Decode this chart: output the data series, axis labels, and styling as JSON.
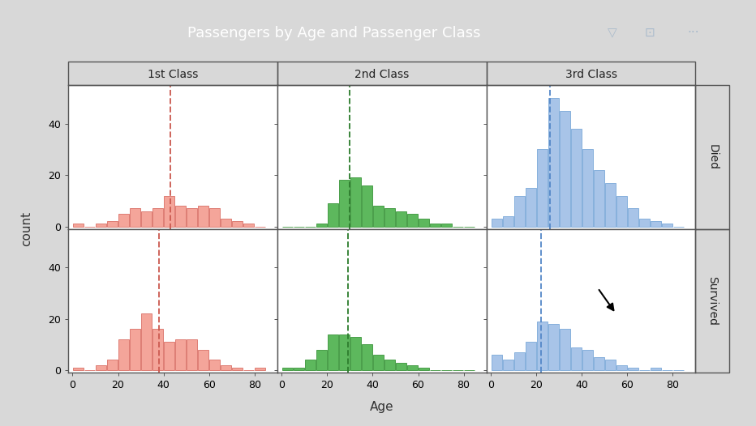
{
  "title": "Passengers by Age and Passenger Class",
  "col_labels": [
    "1st Class",
    "2nd Class",
    "3rd Class"
  ],
  "row_labels": [
    "Died",
    "Survived"
  ],
  "xlabel": "Age",
  "ylabel": "count",
  "xlim": [
    -2,
    90
  ],
  "ylim": [
    -1,
    55
  ],
  "yticks": [
    0,
    20,
    40
  ],
  "xticks": [
    0,
    20,
    40,
    60,
    80
  ],
  "bin_edges": [
    0,
    5,
    10,
    15,
    20,
    25,
    30,
    35,
    40,
    45,
    50,
    55,
    60,
    65,
    70,
    75,
    80,
    85
  ],
  "hist_data": {
    "died_1st": [
      1,
      0,
      1,
      2,
      5,
      7,
      6,
      7,
      12,
      8,
      7,
      8,
      7,
      3,
      2,
      1,
      0
    ],
    "died_2nd": [
      0,
      0,
      0,
      1,
      9,
      18,
      19,
      16,
      8,
      7,
      6,
      5,
      3,
      1,
      1,
      0,
      0
    ],
    "died_3rd": [
      3,
      4,
      12,
      15,
      30,
      50,
      45,
      38,
      30,
      22,
      17,
      12,
      7,
      3,
      2,
      1,
      0
    ],
    "survived_1st": [
      1,
      0,
      2,
      4,
      12,
      16,
      22,
      16,
      11,
      12,
      12,
      8,
      4,
      2,
      1,
      0,
      1
    ],
    "survived_2nd": [
      1,
      1,
      4,
      8,
      14,
      14,
      13,
      10,
      6,
      4,
      3,
      2,
      1,
      0,
      0,
      0,
      0
    ],
    "survived_3rd": [
      6,
      4,
      7,
      11,
      19,
      18,
      16,
      9,
      8,
      5,
      4,
      2,
      1,
      0,
      1,
      0,
      0
    ]
  },
  "mean_lines": {
    "died_1st": 43,
    "died_2nd": 30,
    "died_3rd": 26,
    "survived_1st": 38,
    "survived_2nd": 29,
    "survived_3rd": 22
  },
  "colors": {
    "class1_fill": "#F4A59A",
    "class1_edge": "#D97066",
    "class1_line": "#CC5C52",
    "class2_fill": "#5DB85D",
    "class2_edge": "#3A943A",
    "class2_line": "#2E7D2E",
    "class3_fill": "#A8C4E8",
    "class3_edge": "#7AA8D8",
    "class3_line": "#5588C8"
  },
  "fig_bg": "#D8D8D8",
  "outer_bg": "#F0F0F0",
  "panel_bg": "#FFFFFF",
  "header_bg": "#F2F2F2",
  "title_bg": "#1F3864",
  "title_color": "#FFFFFF",
  "border_color": "#555555",
  "title_fontsize": 13,
  "axis_fontsize": 9,
  "label_fontsize": 11,
  "header_fontsize": 10
}
